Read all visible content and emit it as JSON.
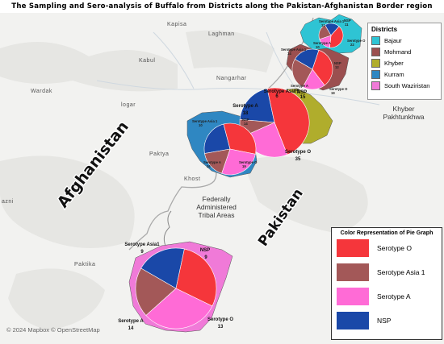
{
  "title": "The Sampling and Sero-analysis of Buffalo from Districts along the Pakistan-Afghanistan Border region",
  "place_labels": {
    "kapisa": "Kapisa",
    "laghman": "Laghman",
    "kabul": "Kabul",
    "nangarhar": "Nangarhar",
    "wardak": "Wardak",
    "logar": "logar",
    "paktya": "Paktya",
    "khost": "Khost",
    "ghazni": "azni",
    "paktika": "Paktika"
  },
  "region_labels": {
    "kp_line1": "Khyber",
    "kp_line2": "Pakhtunkhwa",
    "fata_line1": "Federally",
    "fata_line2": "Administered",
    "fata_line3": "Tribal Areas"
  },
  "country_labels": {
    "afghanistan": "Afghanistan",
    "pakistan": "Pakistan"
  },
  "district_legend": {
    "title": "Districts",
    "items": [
      {
        "name": "Bajaur",
        "color": "#2ec4d4"
      },
      {
        "name": "Mohmand",
        "color": "#9b4f4f"
      },
      {
        "name": "Khyber",
        "color": "#b0ad2c"
      },
      {
        "name": "Kurram",
        "color": "#2f87c2"
      },
      {
        "name": "South Waziristan",
        "color": "#f07ad8"
      }
    ]
  },
  "serotype_legend": {
    "title": "Color Representation of Pie Graph",
    "items": [
      {
        "name": "Serotype O",
        "color": "#f5363b"
      },
      {
        "name": "Serotype Asia 1",
        "color": "#a35858"
      },
      {
        "name": "Serotype A",
        "color": "#ff6bd6"
      },
      {
        "name": "NSP",
        "color": "#1a48a8"
      }
    ]
  },
  "attribution": "© 2024 Mapbox © OpenStreetMap",
  "chart_data": {
    "type": "pie",
    "series_colors": {
      "O": "#f5363b",
      "Asia1": "#a35858",
      "A": "#ff6bd6",
      "NSP": "#1a48a8"
    },
    "pies": [
      {
        "district": "Bajaur",
        "values": {
          "O": 22,
          "Asia1": 12,
          "A": 10,
          "NSP": 11
        },
        "labels": {
          "O": "Serotype O",
          "O_n": "22",
          "Asia1": "Serotype Asia 1",
          "Asia1_n": "12",
          "A": "Serotype A",
          "A_n": "10",
          "NSP": "NSP",
          "NSP_n": "11"
        }
      },
      {
        "district": "Mohmand",
        "values": {
          "O": 19,
          "Asia1": 14,
          "A": 10,
          "NSP": 12
        },
        "labels": {
          "O": "Serotype O",
          "O_n": "19",
          "Asia1": "Serotype Asia 1",
          "Asia1_n": "14",
          "A": "Serotype A",
          "A_n": "10",
          "NSP": "NSP",
          "NSP_n": "12"
        }
      },
      {
        "district": "Khyber",
        "values": {
          "O": 35,
          "Asia1": 6,
          "A": 18,
          "NSP": 15
        },
        "labels": {
          "O": "Serotype O",
          "O_n": "35",
          "Asia1": "Serotype Asia 1",
          "Asia1_n": "6",
          "A": "Serotype A",
          "A_n": "18",
          "NSP": "NSP",
          "NSP_n": "15"
        }
      },
      {
        "district": "Kurram",
        "values": {
          "O": 19,
          "Asia1": 10,
          "A": 16,
          "NSP": 14
        },
        "labels": {
          "O": "Serotype O",
          "O_n": "19",
          "Asia1": "Serotype Asia 1",
          "Asia1_n": "10",
          "A": "Serotype A",
          "A_n": "16",
          "NSP": "NSP",
          "NSP_n": "14"
        }
      },
      {
        "district": "South Waziristan",
        "values": {
          "O": 13,
          "Asia1": 9,
          "A": 14,
          "NSP": 9
        },
        "labels": {
          "O": "Serotype O",
          "O_n": "13",
          "Asia1": "Serotype Asia1",
          "Asia1_n": "9",
          "A": "Serotype A",
          "A_n": "14",
          "NSP": "NSP",
          "NSP_n": "9"
        }
      }
    ]
  }
}
